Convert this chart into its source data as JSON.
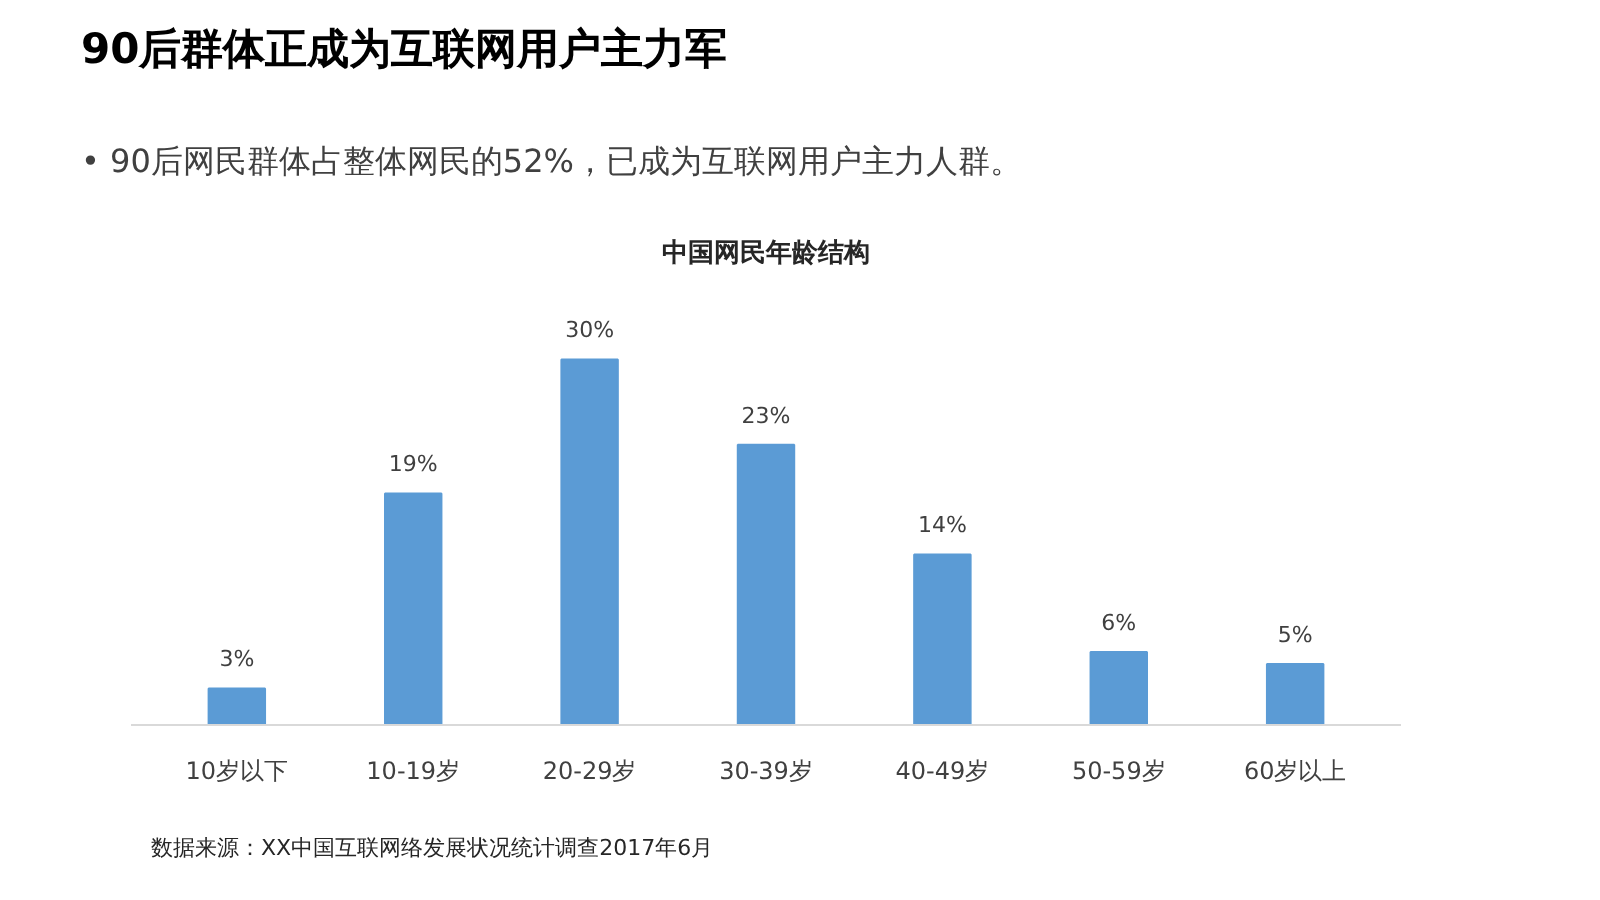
{
  "chart_data": {
    "type": "bar",
    "title": "中国网民年龄结构",
    "categories": [
      "10岁以下",
      "10-19岁",
      "20-29岁",
      "30-39岁",
      "40-49岁",
      "50-59岁",
      "60岁以上"
    ],
    "values": [
      3,
      19,
      30,
      23,
      14,
      6,
      5
    ],
    "value_labels": [
      "3%",
      "19%",
      "30%",
      "23%",
      "14%",
      "6%",
      "5%"
    ],
    "color": "#5b9bd5",
    "annotations": [
      "90后群体正成为互联网用户主力军",
      "•   90后网民群体占整体网民的52%，已成为互联网用户主力人群。",
      "数据来源：XX中国互联网络发展状况统计调查2017年6月"
    ],
    "grid": false
  }
}
